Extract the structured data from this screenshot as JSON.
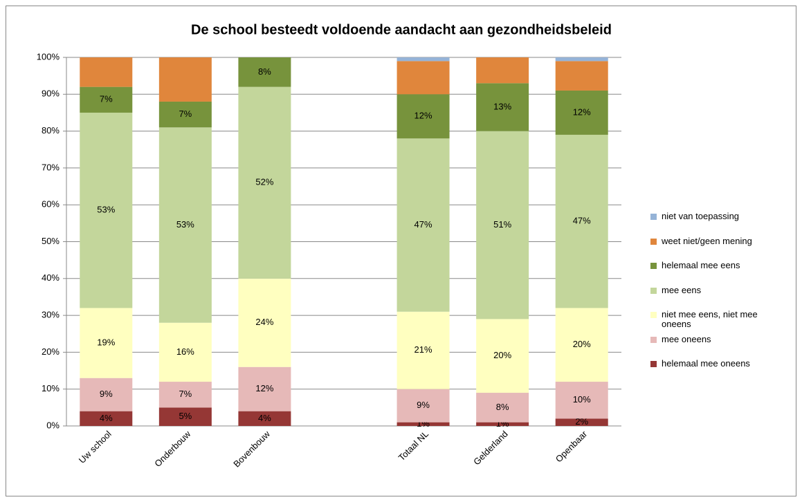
{
  "chart_data": {
    "type": "stacked_bar",
    "title": "De school besteedt voldoende aandacht aan gezondheidsbeleid",
    "categories": [
      "Uw school",
      "Onderbouw",
      "Bovenbouw",
      null,
      "Totaal NL",
      "Gelderland",
      "Openbaar"
    ],
    "series": [
      {
        "name": "helemaal mee oneens",
        "color": "#953735",
        "values": [
          4,
          5,
          4,
          null,
          1,
          1,
          2
        ],
        "value_labels": [
          "4%",
          "5%",
          "4%",
          null,
          "1%",
          "1%",
          "2%"
        ]
      },
      {
        "name": "mee oneens",
        "color": "#e6b9b8",
        "values": [
          9,
          7,
          12,
          null,
          9,
          8,
          10
        ],
        "value_labels": [
          "9%",
          "7%",
          "12%",
          null,
          "9%",
          "8%",
          "10%"
        ]
      },
      {
        "name": "niet mee eens, niet mee oneens",
        "color": "#ffffc0",
        "values": [
          19,
          16,
          24,
          null,
          21,
          20,
          20
        ],
        "value_labels": [
          "19%",
          "16%",
          "24%",
          null,
          "21%",
          "20%",
          "20%"
        ]
      },
      {
        "name": "mee eens",
        "color": "#c3d69b",
        "values": [
          53,
          53,
          52,
          null,
          47,
          51,
          47
        ],
        "value_labels": [
          "53%",
          "53%",
          "52%",
          null,
          "47%",
          "51%",
          "47%"
        ]
      },
      {
        "name": "helemaal mee eens",
        "color": "#77933c",
        "values": [
          7,
          7,
          8,
          null,
          12,
          13,
          12
        ],
        "value_labels": [
          "7%",
          "7%",
          "8%",
          null,
          "12%",
          "13%",
          "12%"
        ]
      },
      {
        "name": "weet niet/geen mening",
        "color": "#e0863c",
        "values": [
          8,
          12,
          0,
          null,
          9,
          7,
          8
        ],
        "value_labels": [
          null,
          null,
          null,
          null,
          null,
          null,
          null
        ]
      },
      {
        "name": "niet van toepassing",
        "color": "#95b3d7",
        "values": [
          0,
          0,
          0,
          null,
          1,
          0,
          1
        ],
        "value_labels": [
          null,
          null,
          null,
          null,
          null,
          null,
          null
        ]
      }
    ],
    "ylim": [
      0,
      100
    ],
    "yticks": [
      {
        "value": 0,
        "label": "0%"
      },
      {
        "value": 10,
        "label": "10%"
      },
      {
        "value": 20,
        "label": "20%"
      },
      {
        "value": 30,
        "label": "30%"
      },
      {
        "value": 40,
        "label": "40%"
      },
      {
        "value": 50,
        "label": "50%"
      },
      {
        "value": 60,
        "label": "60%"
      },
      {
        "value": 70,
        "label": "70%"
      },
      {
        "value": 80,
        "label": "80%"
      },
      {
        "value": 90,
        "label": "90%"
      },
      {
        "value": 100,
        "label": "100%"
      }
    ],
    "grid": true,
    "legend": "right"
  }
}
